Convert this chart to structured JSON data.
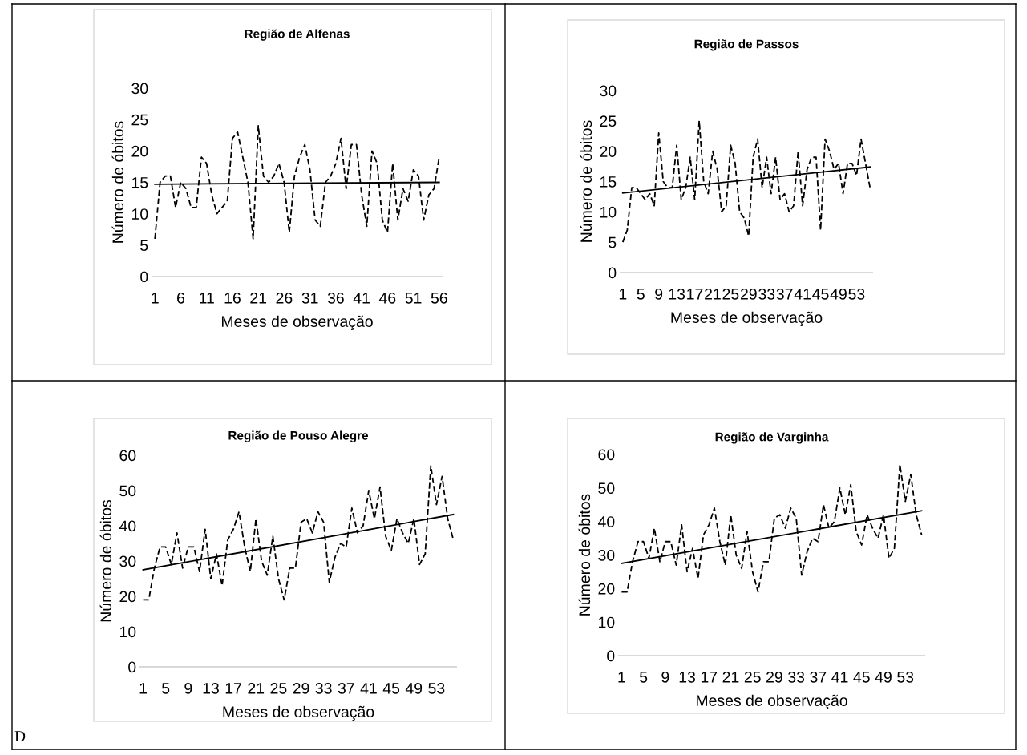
{
  "chart_data": [
    {
      "type": "line",
      "title": "Região de Alfenas",
      "xlabel": "Meses de observação",
      "ylabel": "Número de óbitos",
      "xlim": [
        0.5,
        56.5
      ],
      "xticks": [
        1,
        6,
        11,
        16,
        21,
        26,
        31,
        36,
        41,
        46,
        51,
        56
      ],
      "ylim": [
        0,
        30
      ],
      "yticks": [
        0,
        5,
        10,
        15,
        20,
        25,
        30
      ],
      "grid": false,
      "x": [
        1,
        2,
        3,
        4,
        5,
        6,
        7,
        8,
        9,
        10,
        11,
        12,
        13,
        14,
        15,
        16,
        17,
        18,
        19,
        20,
        21,
        22,
        23,
        24,
        25,
        26,
        27,
        28,
        29,
        30,
        31,
        32,
        33,
        34,
        35,
        36,
        37,
        38,
        39,
        40,
        41,
        42,
        43,
        44,
        45,
        46,
        47,
        48,
        49,
        50,
        51,
        52,
        53,
        54,
        55,
        56
      ],
      "series": [
        {
          "color": "#000000",
          "line_style": "dashed",
          "values": [
            6,
            15,
            16,
            16,
            11,
            15,
            14,
            11,
            11,
            19,
            18,
            13,
            10,
            11,
            12,
            22,
            23,
            19,
            15,
            6,
            24,
            16,
            15,
            16,
            18,
            15,
            7,
            16,
            19,
            21,
            17,
            9,
            8,
            15,
            16,
            18,
            22,
            14,
            21,
            21,
            13,
            8,
            20,
            18,
            9,
            7,
            18,
            9,
            14,
            12,
            17,
            16,
            9,
            13,
            14,
            19
          ]
        },
        {
          "color": "#000000",
          "line_style": "solid",
          "values": [
            14.7,
            null,
            null,
            null,
            null,
            null,
            null,
            null,
            null,
            null,
            null,
            null,
            null,
            null,
            null,
            null,
            null,
            null,
            null,
            null,
            null,
            null,
            null,
            null,
            null,
            null,
            null,
            null,
            null,
            null,
            null,
            null,
            null,
            null,
            null,
            null,
            null,
            null,
            null,
            null,
            null,
            null,
            null,
            null,
            null,
            null,
            null,
            null,
            null,
            null,
            null,
            null,
            null,
            null,
            null,
            15.0
          ]
        }
      ]
    },
    {
      "type": "line",
      "title": "Região de Passos",
      "xlabel": "Meses de observação",
      "ylabel": "Número de óbitos",
      "xlim": [
        0.5,
        56.5
      ],
      "xticks": [
        1,
        5,
        9,
        13,
        17,
        21,
        25,
        29,
        33,
        37,
        41,
        45,
        49,
        53
      ],
      "ylim": [
        0,
        30
      ],
      "yticks": [
        0,
        5,
        10,
        15,
        20,
        25,
        30
      ],
      "grid": false,
      "x": [
        1,
        2,
        3,
        4,
        5,
        6,
        7,
        8,
        9,
        10,
        11,
        12,
        13,
        14,
        15,
        16,
        17,
        18,
        19,
        20,
        21,
        22,
        23,
        24,
        25,
        26,
        27,
        28,
        29,
        30,
        31,
        32,
        33,
        34,
        35,
        36,
        37,
        38,
        39,
        40,
        41,
        42,
        43,
        44,
        45,
        46,
        47,
        48,
        49,
        50,
        51,
        52,
        53,
        54,
        55,
        56
      ],
      "series": [
        {
          "color": "#000000",
          "line_style": "dashed",
          "values": [
            5,
            7,
            14,
            14,
            13,
            12,
            13,
            11,
            23,
            15,
            14,
            14,
            21,
            12,
            14,
            19,
            12,
            25,
            15,
            13,
            20,
            17,
            10,
            11,
            21,
            18,
            10,
            9,
            6,
            19,
            22,
            14,
            19,
            13,
            19,
            12,
            13,
            10,
            11,
            20,
            11,
            17,
            19,
            19,
            7,
            22,
            20,
            17,
            18,
            13,
            18,
            18,
            16,
            22,
            18,
            14
          ]
        },
        {
          "color": "#000000",
          "line_style": "solid",
          "values": [
            13.1,
            null,
            null,
            null,
            null,
            null,
            null,
            null,
            null,
            null,
            null,
            null,
            null,
            null,
            null,
            null,
            null,
            null,
            null,
            null,
            null,
            null,
            null,
            null,
            null,
            null,
            null,
            null,
            null,
            null,
            null,
            null,
            null,
            null,
            null,
            null,
            null,
            null,
            null,
            null,
            null,
            null,
            null,
            null,
            null,
            null,
            null,
            null,
            null,
            null,
            null,
            null,
            null,
            null,
            null,
            17.4
          ]
        }
      ]
    },
    {
      "type": "line",
      "title": "Região de Pouso Alegre",
      "xlabel": "Meses de observação",
      "ylabel": "Número de óbitos",
      "xlim": [
        0.5,
        56.5
      ],
      "xticks": [
        1,
        5,
        9,
        13,
        17,
        21,
        25,
        29,
        33,
        37,
        41,
        45,
        49,
        53
      ],
      "ylim": [
        0,
        60
      ],
      "yticks": [
        0,
        10,
        20,
        30,
        40,
        50,
        60
      ],
      "grid": false,
      "annotations": [
        "D"
      ],
      "x": [
        1,
        2,
        3,
        4,
        5,
        6,
        7,
        8,
        9,
        10,
        11,
        12,
        13,
        14,
        15,
        16,
        17,
        18,
        19,
        20,
        21,
        22,
        23,
        24,
        25,
        26,
        27,
        28,
        29,
        30,
        31,
        32,
        33,
        34,
        35,
        36,
        37,
        38,
        39,
        40,
        41,
        42,
        43,
        44,
        45,
        46,
        47,
        48,
        49,
        50,
        51,
        52,
        53,
        54,
        55,
        56
      ],
      "series": [
        {
          "color": "#000000",
          "line_style": "dashed",
          "values": [
            19,
            19,
            28,
            34,
            34,
            29,
            38,
            28,
            34,
            34,
            27,
            39,
            25,
            32,
            23,
            36,
            39,
            44,
            34,
            27,
            42,
            30,
            26,
            37,
            25,
            19,
            28,
            28,
            41,
            42,
            38,
            44,
            41,
            24,
            31,
            35,
            34,
            45,
            38,
            40,
            50,
            42,
            51,
            37,
            33,
            42,
            38,
            35,
            42,
            29,
            32,
            57,
            46,
            54,
            42,
            36
          ]
        },
        {
          "color": "#000000",
          "line_style": "solid",
          "values": [
            27.5,
            null,
            null,
            null,
            null,
            null,
            null,
            null,
            null,
            null,
            null,
            null,
            null,
            null,
            null,
            null,
            null,
            null,
            null,
            null,
            null,
            null,
            null,
            null,
            null,
            null,
            null,
            null,
            null,
            null,
            null,
            null,
            null,
            null,
            null,
            null,
            null,
            null,
            null,
            null,
            null,
            null,
            null,
            null,
            null,
            null,
            null,
            null,
            null,
            null,
            null,
            null,
            null,
            null,
            null,
            43.2
          ]
        }
      ]
    },
    {
      "type": "line",
      "title": "Região de Varginha",
      "xlabel": "Meses de observação",
      "ylabel": "Número de óbitos",
      "xlim": [
        0.5,
        56.5
      ],
      "xticks": [
        1,
        5,
        9,
        13,
        17,
        21,
        25,
        29,
        33,
        37,
        41,
        45,
        49,
        53
      ],
      "ylim": [
        0,
        60
      ],
      "yticks": [
        0,
        10,
        20,
        30,
        40,
        50,
        60
      ],
      "grid": false,
      "x": [
        1,
        2,
        3,
        4,
        5,
        6,
        7,
        8,
        9,
        10,
        11,
        12,
        13,
        14,
        15,
        16,
        17,
        18,
        19,
        20,
        21,
        22,
        23,
        24,
        25,
        26,
        27,
        28,
        29,
        30,
        31,
        32,
        33,
        34,
        35,
        36,
        37,
        38,
        39,
        40,
        41,
        42,
        43,
        44,
        45,
        46,
        47,
        48,
        49,
        50,
        51,
        52,
        53,
        54,
        55,
        56
      ],
      "series": [
        {
          "color": "#000000",
          "line_style": "dashed",
          "values": [
            19,
            19,
            28,
            34,
            34,
            29,
            38,
            28,
            34,
            34,
            27,
            39,
            25,
            32,
            23,
            36,
            39,
            44,
            34,
            27,
            42,
            30,
            26,
            37,
            25,
            19,
            28,
            28,
            41,
            42,
            38,
            44,
            41,
            24,
            31,
            35,
            34,
            45,
            38,
            40,
            50,
            42,
            51,
            37,
            33,
            42,
            38,
            35,
            42,
            29,
            32,
            57,
            46,
            54,
            42,
            36
          ]
        },
        {
          "color": "#000000",
          "line_style": "solid",
          "values": [
            27.5,
            null,
            null,
            null,
            null,
            null,
            null,
            null,
            null,
            null,
            null,
            null,
            null,
            null,
            null,
            null,
            null,
            null,
            null,
            null,
            null,
            null,
            null,
            null,
            null,
            null,
            null,
            null,
            null,
            null,
            null,
            null,
            null,
            null,
            null,
            null,
            null,
            null,
            null,
            null,
            null,
            null,
            null,
            null,
            null,
            null,
            null,
            null,
            null,
            null,
            null,
            null,
            null,
            null,
            null,
            43.2
          ]
        }
      ]
    }
  ]
}
